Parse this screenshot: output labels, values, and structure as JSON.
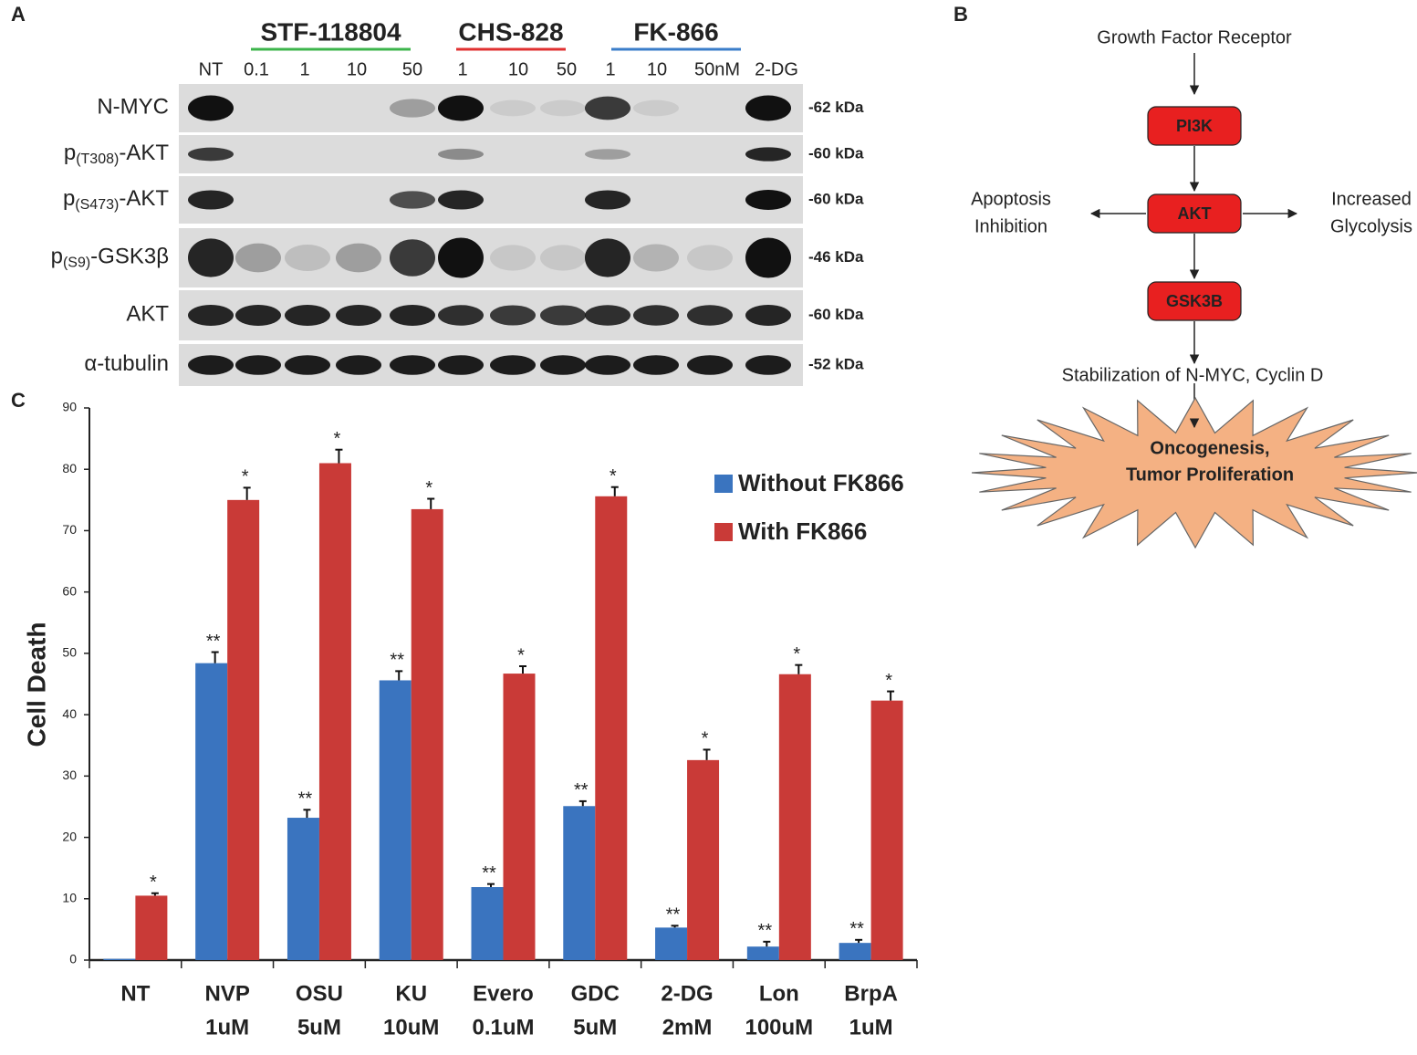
{
  "panel_a": {
    "label": "A",
    "groups": [
      {
        "name": "STF-118804",
        "color": "#3cb44b"
      },
      {
        "name": "CHS-828",
        "color": "#e03030"
      },
      {
        "name": "FK-866",
        "color": "#3a7dc9"
      }
    ],
    "lanes": [
      "NT",
      "0.1",
      "1",
      "10",
      "50",
      "1",
      "10",
      "50",
      "1",
      "10",
      "50nM",
      "2-DG"
    ],
    "rows": [
      {
        "parts": [
          "N-MYC"
        ],
        "size": "-62 kDa"
      },
      {
        "parts": [
          "p",
          "(T308)",
          "-AKT"
        ],
        "size": "-60 kDa"
      },
      {
        "parts": [
          "p",
          "(S473)",
          "-AKT"
        ],
        "size": "-60 kDa"
      },
      {
        "parts": [
          "p",
          "(S9)",
          "-GSK3β"
        ],
        "size": "-46 kDa"
      },
      {
        "parts": [
          "AKT"
        ],
        "size": "-60 kDa"
      },
      {
        "parts": [
          "α-tubulin"
        ],
        "size": "-52 kDa"
      }
    ]
  },
  "panel_b": {
    "label": "B",
    "top": "Growth Factor Receptor",
    "nodes": [
      "PI3K",
      "AKT",
      "GSK3B"
    ],
    "left": [
      "Apoptosis",
      "Inhibition"
    ],
    "right": [
      "Increased",
      "Glycolysis"
    ],
    "stabilization": "Stabilization of N-MYC, Cyclin D",
    "outcome": [
      "Oncogenesis,",
      "Tumor Proliferation"
    ],
    "node_color": "#e82020",
    "burst_color": "#f4b183"
  },
  "chart_data": {
    "type": "bar",
    "panel_label": "C",
    "ylabel": "Cell Death",
    "categories": [
      [
        "NT"
      ],
      [
        "NVP",
        "1uM"
      ],
      [
        "OSU",
        "5uM"
      ],
      [
        "KU",
        "10uM"
      ],
      [
        "Evero",
        "0.1uM"
      ],
      [
        "GDC",
        "5uM"
      ],
      [
        "2-DG",
        "2mM"
      ],
      [
        "Lon",
        "100uM"
      ],
      [
        "BrpA",
        "1uM"
      ]
    ],
    "series": [
      {
        "name": "Without FK866",
        "color": "#3a74bf",
        "values": [
          0.2,
          48.4,
          23.2,
          45.6,
          11.9,
          25.1,
          5.3,
          2.2,
          2.8
        ],
        "errors": [
          0,
          1.8,
          1.3,
          1.5,
          0.5,
          0.8,
          0.3,
          0.8,
          0.5
        ],
        "significance": [
          null,
          "**",
          "**",
          "**",
          "**",
          "**",
          "**",
          "**",
          "**"
        ]
      },
      {
        "name": "With FK866",
        "color": "#c93a37",
        "values": [
          10.5,
          75.0,
          81.0,
          73.5,
          46.7,
          75.6,
          32.6,
          46.6,
          42.3
        ],
        "errors": [
          0.4,
          2.0,
          2.2,
          1.7,
          1.2,
          1.5,
          1.7,
          1.5,
          1.5
        ],
        "significance": [
          "*",
          "*",
          "*",
          "*",
          "*",
          "*",
          "*",
          "*",
          "*"
        ]
      }
    ],
    "ylim": [
      0,
      90
    ],
    "yticks": [
      0,
      10,
      20,
      30,
      40,
      50,
      60,
      70,
      80,
      90
    ],
    "grid": false,
    "legend": "upper right"
  }
}
